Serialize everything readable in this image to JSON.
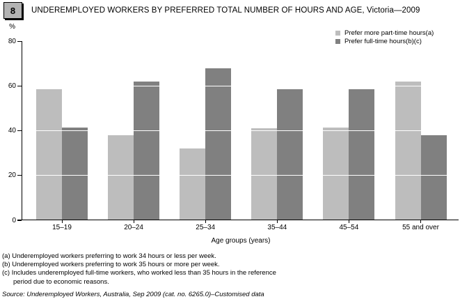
{
  "figure": {
    "number": "8",
    "title": "UNDEREMPLOYED WORKERS BY PREFERRED TOTAL NUMBER OF HOURS AND AGE, Victoria—2009"
  },
  "chart_data": {
    "type": "bar",
    "title": "UNDEREMPLOYED WORKERS BY PREFERRED TOTAL NUMBER OF HOURS AND AGE, Victoria—2009",
    "categories": [
      "15–19",
      "20–24",
      "25–34",
      "35–44",
      "45–54",
      "55 and over"
    ],
    "series": [
      {
        "name": "Prefer more part-time hours(a)",
        "color": "#bdbdbd",
        "values": [
          58.5,
          38,
          32,
          41,
          41.5,
          62
        ]
      },
      {
        "name": "Prefer full-time hours(b)(c)",
        "color": "#808080",
        "values": [
          41.5,
          62,
          68,
          58.5,
          58.5,
          38
        ]
      }
    ],
    "xlabel": "Age groups (years)",
    "ylabel": "%",
    "ylim": [
      0,
      80
    ],
    "yticks": [
      0,
      20,
      40,
      60,
      80
    ],
    "grid": "white gridlines at 20/40/60 overlaid on bars",
    "legend_position": "top-right",
    "axis_color": "#000000"
  },
  "footnotes": [
    "(a) Underemployed workers preferring to work 34 hours or less per week.",
    "(b) Underemployed workers preferring to work 35 hours or more per week.",
    "(c) Includes underemployed full-time workers, who worked less than 35 hours in the reference period due to economic reasons."
  ],
  "source": "Source: Underemployed Workers, Australia, Sep 2009 (cat. no. 6265.0)–Customised data"
}
